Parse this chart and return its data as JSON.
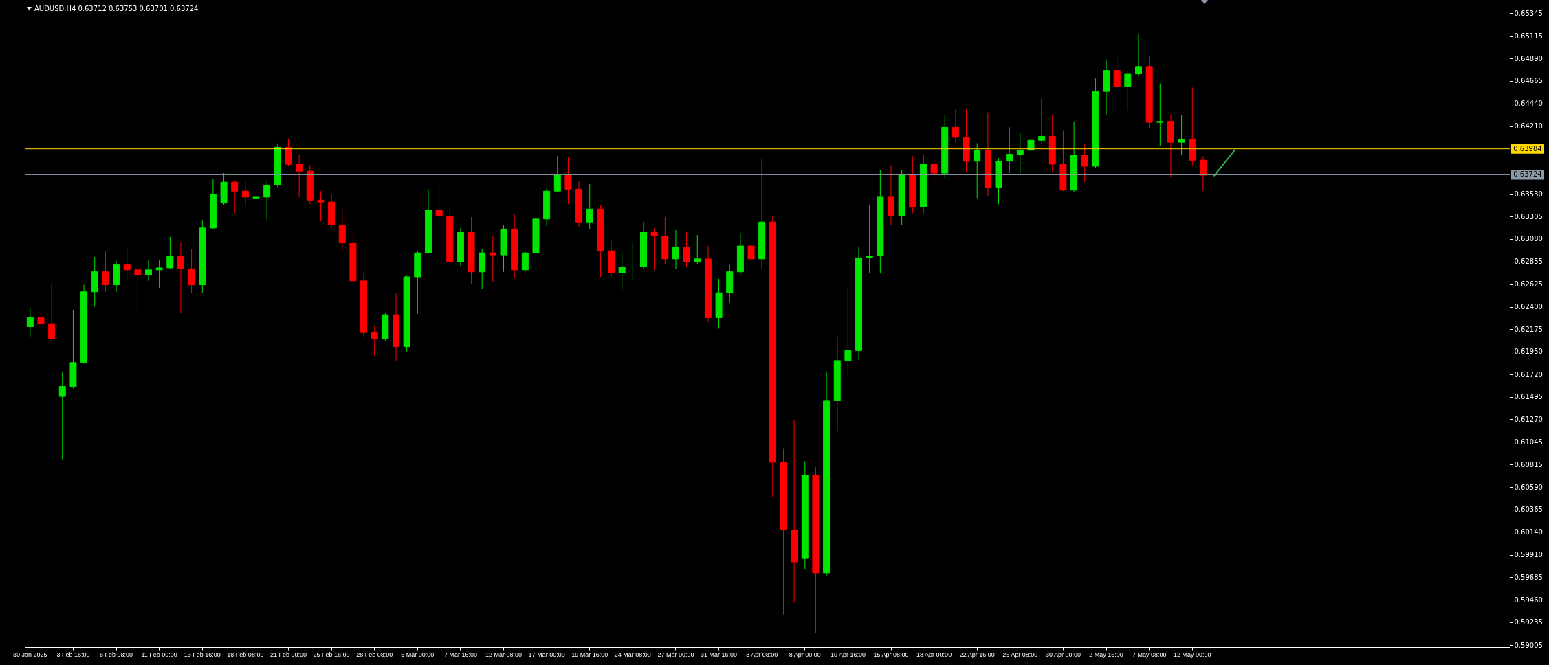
{
  "chart_data": {
    "type": "candlestick",
    "title": "AUDUSD,H4 0.63712 0.63753 0.63701 0.63724",
    "categories": [
      "30 Jan 2025",
      null,
      null,
      null,
      "3 Feb 16:00",
      null,
      null,
      null,
      "6 Feb 08:00",
      null,
      null,
      null,
      "11 Feb 00:00",
      null,
      null,
      null,
      "13 Feb 16:00",
      null,
      null,
      null,
      "18 Feb 08:00",
      null,
      null,
      null,
      "21 Feb 00:00",
      null,
      null,
      null,
      "25 Feb 16:00",
      null,
      null,
      null,
      "28 Feb 08:00",
      null,
      null,
      null,
      "5 Mar 00:00",
      null,
      null,
      null,
      "7 Mar 16:00",
      null,
      null,
      null,
      "12 Mar 08:00",
      null,
      null,
      null,
      "17 Mar 00:00",
      null,
      null,
      null,
      "19 Mar 16:00",
      null,
      null,
      null,
      "24 Mar 08:00",
      null,
      null,
      null,
      "27 Mar 00:00",
      null,
      null,
      null,
      "31 Mar 16:00",
      null,
      null,
      null,
      "3 Apr 08:00",
      null,
      null,
      null,
      "8 Apr 00:00",
      null,
      null,
      null,
      "10 Apr 16:00",
      null,
      null,
      null,
      "15 Apr 08:00",
      null,
      null,
      null,
      "18 Apr 00:00",
      null,
      null,
      null,
      "22 Apr 16:00",
      null,
      null,
      null,
      "25 Apr 08:00",
      null,
      null,
      null,
      "30 Apr 00:00",
      null,
      null,
      null,
      "2 May 16:00",
      null,
      null,
      null,
      "7 May 08:00",
      null,
      null,
      null,
      "12 May 00:00",
      null,
      null,
      null,
      null,
      null,
      null,
      null,
      null,
      null,
      null,
      null,
      null,
      null,
      null,
      null,
      null,
      null,
      null,
      null,
      null,
      null,
      null,
      null,
      null,
      null,
      null,
      null,
      null,
      null
    ],
    "ohlc": [
      [
        0.622,
        0.6238,
        0.621,
        0.6229
      ],
      [
        0.6229,
        0.6239,
        0.6198,
        0.6223
      ],
      [
        0.6223,
        0.6263,
        0.6206,
        0.6208
      ],
      [
        0.615,
        0.6174,
        0.6087,
        0.616
      ],
      [
        0.616,
        0.6237,
        0.6158,
        0.6184
      ],
      [
        0.6184,
        0.6262,
        0.6183,
        0.6255
      ],
      [
        0.6255,
        0.629,
        0.624,
        0.6275
      ],
      [
        0.6275,
        0.6296,
        0.6255,
        0.6262
      ],
      [
        0.6262,
        0.6286,
        0.6255,
        0.6282
      ],
      [
        0.6282,
        0.6299,
        0.6265,
        0.6277
      ],
      [
        0.6277,
        0.628,
        0.6232,
        0.6272
      ],
      [
        0.6272,
        0.6287,
        0.6266,
        0.6277
      ],
      [
        0.6277,
        0.6287,
        0.6259,
        0.6279
      ],
      [
        0.6279,
        0.631,
        0.6278,
        0.6291
      ],
      [
        0.6291,
        0.6305,
        0.6234,
        0.6278
      ],
      [
        0.6278,
        0.6298,
        0.6254,
        0.6262
      ],
      [
        0.6262,
        0.6327,
        0.6254,
        0.6319
      ],
      [
        0.6319,
        0.6368,
        0.6318,
        0.6353
      ],
      [
        0.6344,
        0.6374,
        0.6342,
        0.6365
      ],
      [
        0.6365,
        0.6367,
        0.6334,
        0.6356
      ],
      [
        0.6356,
        0.6365,
        0.6341,
        0.635
      ],
      [
        0.6349,
        0.637,
        0.6342,
        0.635
      ],
      [
        0.635,
        0.6366,
        0.6327,
        0.6362
      ],
      [
        0.6362,
        0.6404,
        0.636,
        0.64
      ],
      [
        0.64,
        0.6408,
        0.6381,
        0.6383
      ],
      [
        0.6383,
        0.6392,
        0.635,
        0.6376
      ],
      [
        0.6376,
        0.6382,
        0.6343,
        0.6347
      ],
      [
        0.6347,
        0.6356,
        0.6326,
        0.6345
      ],
      [
        0.6345,
        0.6353,
        0.6319,
        0.6322
      ],
      [
        0.6322,
        0.6338,
        0.6295,
        0.6304
      ],
      [
        0.6304,
        0.6314,
        0.6265,
        0.6266
      ],
      [
        0.6266,
        0.6274,
        0.621,
        0.6214
      ],
      [
        0.6214,
        0.6221,
        0.6191,
        0.6208
      ],
      [
        0.6208,
        0.6234,
        0.6206,
        0.6232
      ],
      [
        0.6232,
        0.6254,
        0.6186,
        0.62
      ],
      [
        0.62,
        0.6271,
        0.6195,
        0.627
      ],
      [
        0.627,
        0.6296,
        0.6233,
        0.6294
      ],
      [
        0.6294,
        0.6357,
        0.6293,
        0.6337
      ],
      [
        0.6337,
        0.6363,
        0.6322,
        0.6331
      ],
      [
        0.6331,
        0.6338,
        0.6284,
        0.6285
      ],
      [
        0.6285,
        0.6319,
        0.6281,
        0.6315
      ],
      [
        0.6315,
        0.633,
        0.6263,
        0.6275
      ],
      [
        0.6275,
        0.6298,
        0.6258,
        0.6294
      ],
      [
        0.6294,
        0.6311,
        0.6265,
        0.6292
      ],
      [
        0.6292,
        0.6322,
        0.6275,
        0.6318
      ],
      [
        0.6318,
        0.6333,
        0.6269,
        0.6277
      ],
      [
        0.6277,
        0.6296,
        0.6274,
        0.6294
      ],
      [
        0.6294,
        0.6331,
        0.6293,
        0.6328
      ],
      [
        0.6328,
        0.6359,
        0.6321,
        0.6356
      ],
      [
        0.6356,
        0.6391,
        0.6355,
        0.6372
      ],
      [
        0.6372,
        0.639,
        0.6343,
        0.6358
      ],
      [
        0.6358,
        0.6366,
        0.632,
        0.6325
      ],
      [
        0.6325,
        0.6363,
        0.6318,
        0.6338
      ],
      [
        0.6338,
        0.6342,
        0.627,
        0.6296
      ],
      [
        0.6296,
        0.6306,
        0.627,
        0.6274
      ],
      [
        0.6274,
        0.6295,
        0.6257,
        0.628
      ],
      [
        0.628,
        0.6305,
        0.6267,
        0.628
      ],
      [
        0.628,
        0.6325,
        0.6278,
        0.6315
      ],
      [
        0.6315,
        0.6319,
        0.6277,
        0.6311
      ],
      [
        0.6311,
        0.633,
        0.6283,
        0.6288
      ],
      [
        0.6288,
        0.6317,
        0.6278,
        0.63
      ],
      [
        0.63,
        0.6315,
        0.628,
        0.6285
      ],
      [
        0.6285,
        0.6312,
        0.6283,
        0.6288
      ],
      [
        0.6288,
        0.6301,
        0.6225,
        0.6229
      ],
      [
        0.6229,
        0.6268,
        0.6218,
        0.6254
      ],
      [
        0.6254,
        0.6282,
        0.6244,
        0.6275
      ],
      [
        0.6275,
        0.6314,
        0.6272,
        0.6301
      ],
      [
        0.6301,
        0.634,
        0.6225,
        0.6288
      ],
      [
        0.6288,
        0.6388,
        0.6278,
        0.6325
      ],
      [
        0.6325,
        0.6331,
        0.6049,
        0.6084
      ],
      [
        0.6084,
        0.6098,
        0.5931,
        0.6016
      ],
      [
        0.6016,
        0.6126,
        0.5943,
        0.5984
      ],
      [
        0.5988,
        0.6085,
        0.5977,
        0.6071
      ],
      [
        0.6071,
        0.6079,
        0.5913,
        0.5973
      ],
      [
        0.5973,
        0.6175,
        0.597,
        0.6146
      ],
      [
        0.6146,
        0.621,
        0.6115,
        0.6186
      ],
      [
        0.6186,
        0.6259,
        0.617,
        0.6196
      ],
      [
        0.6196,
        0.63,
        0.6187,
        0.6289
      ],
      [
        0.6289,
        0.6342,
        0.6274,
        0.6291
      ],
      [
        0.6291,
        0.6377,
        0.6274,
        0.635
      ],
      [
        0.635,
        0.6382,
        0.6322,
        0.6331
      ],
      [
        0.6331,
        0.6377,
        0.6322,
        0.6373
      ],
      [
        0.6373,
        0.6391,
        0.6334,
        0.634
      ],
      [
        0.634,
        0.6393,
        0.6333,
        0.6383
      ],
      [
        0.6383,
        0.6391,
        0.6365,
        0.6374
      ],
      [
        0.6374,
        0.6432,
        0.6369,
        0.642
      ],
      [
        0.642,
        0.6438,
        0.6405,
        0.641
      ],
      [
        0.641,
        0.6438,
        0.6375,
        0.6386
      ],
      [
        0.6386,
        0.6404,
        0.6349,
        0.6397
      ],
      [
        0.6397,
        0.6435,
        0.6351,
        0.636
      ],
      [
        0.636,
        0.6389,
        0.6343,
        0.6386
      ],
      [
        0.6386,
        0.642,
        0.6374,
        0.6393
      ],
      [
        0.6393,
        0.6414,
        0.6374,
        0.6397
      ],
      [
        0.6397,
        0.6415,
        0.6367,
        0.6407
      ],
      [
        0.6407,
        0.6449,
        0.6404,
        0.6411
      ],
      [
        0.6411,
        0.6432,
        0.6375,
        0.6383
      ],
      [
        0.6383,
        0.6417,
        0.6356,
        0.6357
      ],
      [
        0.6357,
        0.6426,
        0.6355,
        0.6392
      ],
      [
        0.6392,
        0.6403,
        0.6365,
        0.6381
      ],
      [
        0.6381,
        0.6469,
        0.6379,
        0.6456
      ],
      [
        0.6456,
        0.6488,
        0.6433,
        0.6477
      ],
      [
        0.6477,
        0.6493,
        0.6459,
        0.6461
      ],
      [
        0.6461,
        0.6476,
        0.6437,
        0.6474
      ],
      [
        0.6474,
        0.6514,
        0.6471,
        0.6481
      ],
      [
        0.6481,
        0.6491,
        0.6419,
        0.6425
      ],
      [
        0.6425,
        0.6464,
        0.6401,
        0.6426
      ],
      [
        0.6426,
        0.6433,
        0.637,
        0.6405
      ],
      [
        0.6405,
        0.6432,
        0.6392,
        0.6408
      ],
      [
        0.6408,
        0.646,
        0.6382,
        0.6387
      ],
      [
        0.6387,
        0.6391,
        0.6356,
        0.6372
      ],
      null,
      null,
      null,
      null,
      null,
      null,
      null,
      null,
      null,
      null,
      null,
      null,
      null,
      null,
      null,
      null,
      null,
      null,
      null,
      null,
      null,
      null,
      null,
      null,
      null,
      null,
      null,
      null
    ],
    "series": [
      {
        "type": "line",
        "color": "#2eb350",
        "values": [
          null,
          null,
          null,
          null,
          null,
          null,
          null,
          null,
          null,
          null,
          null,
          null,
          null,
          null,
          null,
          null,
          null,
          null,
          null,
          null,
          null,
          null,
          null,
          null,
          null,
          null,
          null,
          null,
          null,
          null,
          null,
          null,
          null,
          null,
          null,
          null,
          null,
          null,
          null,
          null,
          null,
          null,
          null,
          null,
          null,
          null,
          null,
          null,
          null,
          null,
          null,
          null,
          null,
          null,
          null,
          null,
          null,
          null,
          null,
          null,
          null,
          null,
          null,
          null,
          null,
          null,
          null,
          null,
          null,
          null,
          null,
          null,
          null,
          null,
          null,
          null,
          null,
          null,
          null,
          null,
          null,
          null,
          null,
          null,
          null,
          null,
          null,
          null,
          null,
          null,
          null,
          null,
          null,
          null,
          null,
          null,
          null,
          null,
          null,
          null,
          null,
          null,
          null,
          null,
          null,
          null,
          null,
          null,
          null,
          null,
          0.6371,
          null,
          0.6398,
          null,
          null,
          null,
          null,
          null,
          null,
          null,
          null,
          null,
          null,
          null,
          null,
          null,
          null,
          null,
          null,
          null,
          null,
          null,
          null,
          null,
          null,
          null,
          null,
          null
        ]
      }
    ],
    "ylim": [
      0.58985,
      0.6545
    ],
    "yticks": [
      0.59005,
      0.59235,
      {
        "value": 0.5946,
        "label": "0.59460"
      },
      0.59685,
      {
        "value": 0.5991,
        "label": "0.59910"
      },
      {
        "value": 0.6014,
        "label": "0.60140"
      },
      0.60365,
      {
        "value": 0.6059,
        "label": "0.60590"
      },
      0.60815,
      0.61045,
      {
        "value": 0.6127,
        "label": "0.61270"
      },
      0.61495,
      {
        "value": 0.6172,
        "label": "0.61720"
      },
      {
        "value": 0.6195,
        "label": "0.61950"
      },
      0.62175,
      {
        "value": 0.624,
        "label": "0.62400"
      },
      0.62625,
      0.62855,
      {
        "value": 0.6308,
        "label": "0.63080"
      },
      0.63305,
      {
        "value": 0.6353,
        "label": "0.63530"
      },
      {
        "value": 0.6421,
        "label": "0.64210"
      },
      {
        "value": 0.6444,
        "label": "0.64440"
      },
      0.64665,
      {
        "value": 0.6489,
        "label": "0.64890"
      },
      0.65115,
      0.65345
    ],
    "ref_lines": [
      {
        "axis": "y",
        "value": 0.63984,
        "label": "0.63984",
        "color": "#ffd700"
      },
      {
        "axis": "y",
        "value": 0.63724,
        "label": "0.63724",
        "color": "#8c9aa8"
      }
    ]
  }
}
